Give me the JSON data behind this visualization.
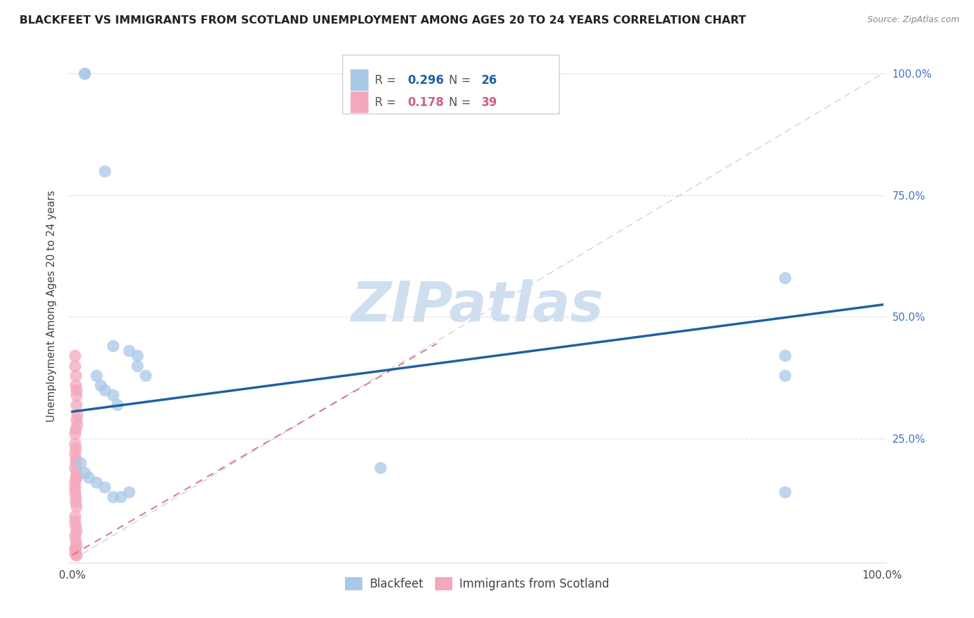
{
  "title": "BLACKFEET VS IMMIGRANTS FROM SCOTLAND UNEMPLOYMENT AMONG AGES 20 TO 24 YEARS CORRELATION CHART",
  "source": "Source: ZipAtlas.com",
  "ylabel": "Unemployment Among Ages 20 to 24 years",
  "blue_color": "#A8C8E8",
  "pink_color": "#F4A8BC",
  "trend_blue": "#2060A0",
  "trend_pink": "#D06080",
  "ref_line_color": "#C8C8C8",
  "watermark_color": "#D0DFF0",
  "R_blue": 0.296,
  "N_blue": 26,
  "R_pink": 0.178,
  "N_pink": 39,
  "marker_size": 160,
  "blackfeet_x": [
    0.015,
    0.015,
    0.04,
    0.05,
    0.07,
    0.08,
    0.08,
    0.09,
    0.03,
    0.035,
    0.04,
    0.05,
    0.055,
    0.01,
    0.015,
    0.02,
    0.03,
    0.04,
    0.05,
    0.06,
    0.07,
    0.38,
    0.88,
    0.88,
    0.88,
    0.88
  ],
  "blackfeet_y": [
    1.0,
    1.0,
    0.8,
    0.44,
    0.43,
    0.42,
    0.4,
    0.38,
    0.38,
    0.36,
    0.35,
    0.34,
    0.32,
    0.2,
    0.18,
    0.17,
    0.16,
    0.15,
    0.13,
    0.13,
    0.14,
    0.19,
    0.58,
    0.42,
    0.38,
    0.14
  ],
  "scotland_x": [
    0.003,
    0.003,
    0.004,
    0.004,
    0.005,
    0.005,
    0.005,
    0.006,
    0.006,
    0.003,
    0.003,
    0.004,
    0.004,
    0.005,
    0.005,
    0.003,
    0.003,
    0.004,
    0.004,
    0.005,
    0.003,
    0.003,
    0.004,
    0.005,
    0.003,
    0.004,
    0.005,
    0.003,
    0.004,
    0.003,
    0.004,
    0.005,
    0.003,
    0.004,
    0.005,
    0.003,
    0.004,
    0.003,
    0.004
  ],
  "scotland_y": [
    0.42,
    0.4,
    0.38,
    0.36,
    0.35,
    0.34,
    0.32,
    0.3,
    0.28,
    0.24,
    0.22,
    0.21,
    0.2,
    0.18,
    0.17,
    0.15,
    0.14,
    0.13,
    0.12,
    0.11,
    0.09,
    0.08,
    0.07,
    0.06,
    0.05,
    0.04,
    0.03,
    0.025,
    0.02,
    0.015,
    0.012,
    0.01,
    0.26,
    0.27,
    0.29,
    0.16,
    0.17,
    0.19,
    0.23
  ],
  "blue_line_x0": 0.0,
  "blue_line_y0": 0.305,
  "blue_line_x1": 1.0,
  "blue_line_y1": 0.525,
  "pink_line_x0": 0.0,
  "pink_line_y0": 0.01,
  "pink_line_x1": 0.45,
  "pink_line_y1": 0.445,
  "ref_line_x0": 0.0,
  "ref_line_y0": 0.0,
  "ref_line_x1": 1.0,
  "ref_line_y1": 1.0,
  "xmin": 0.0,
  "xmax": 1.0,
  "ymin": 0.0,
  "ymax": 1.05
}
